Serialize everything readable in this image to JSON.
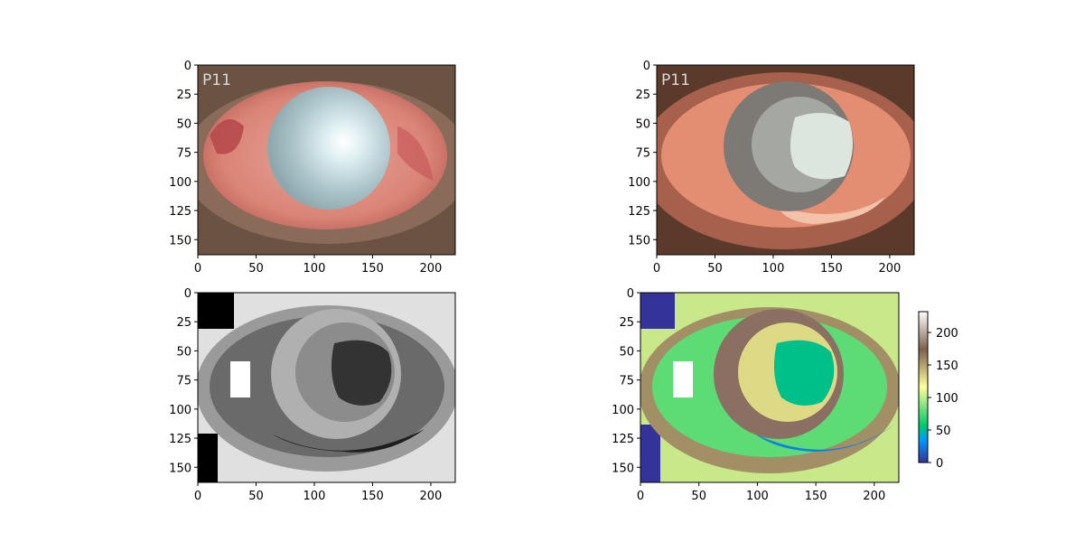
{
  "figure": {
    "watermark_text": "P11"
  },
  "chart_data": [
    {
      "type": "heatmap",
      "panel": "original photo",
      "xlim": [
        0,
        221
      ],
      "ylim": [
        163,
        0
      ],
      "xticks": [
        0,
        50,
        100,
        150,
        200
      ],
      "yticks": [
        0,
        25,
        50,
        75,
        100,
        125,
        150
      ],
      "colors": {
        "sclera": "#d98f82",
        "vessels": "#b5474a",
        "pupil": "#aec6cf",
        "reflection": "#ffffff",
        "eyelid": "#6a5342"
      }
    },
    {
      "type": "heatmap",
      "panel": "color quantized",
      "xlim": [
        0,
        221
      ],
      "ylim": [
        163,
        0
      ],
      "xticks": [
        0,
        50,
        100,
        150,
        200
      ],
      "yticks": [
        0,
        25,
        50,
        75,
        100,
        125,
        150
      ],
      "colors": {
        "outer": "#5b3a2c",
        "skin": "#a6604c",
        "sclera": "#e38d72",
        "ring": "#7d7a76",
        "iris": "#a5a8a2",
        "center": "#dde6de",
        "lower_band": "#f2c3a8"
      }
    },
    {
      "type": "heatmap",
      "panel": "label map (gray)",
      "xlim": [
        0,
        221
      ],
      "ylim": [
        163,
        0
      ],
      "xticks": [
        0,
        50,
        100,
        150,
        200
      ],
      "yticks": [
        0,
        25,
        50,
        75,
        100,
        125,
        150
      ],
      "colormap": "gray"
    },
    {
      "type": "heatmap",
      "panel": "label map (terrain)",
      "xlim": [
        0,
        221
      ],
      "ylim": [
        163,
        0
      ],
      "xticks": [
        0,
        50,
        100,
        150,
        200
      ],
      "yticks": [
        0,
        25,
        50,
        75,
        100,
        125,
        150
      ],
      "colormap": "terrain",
      "colorbar": {
        "ticks": [
          0,
          50,
          100,
          150,
          200
        ],
        "range": [
          0,
          232
        ]
      }
    }
  ]
}
